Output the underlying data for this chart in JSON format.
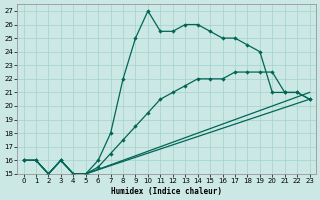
{
  "xlabel": "Humidex (Indice chaleur)",
  "bg_color": "#cce8e4",
  "grid_color": "#aad4d0",
  "line_color": "#006655",
  "xlim": [
    -0.5,
    23.5
  ],
  "ylim": [
    15,
    27.5
  ],
  "xticks": [
    0,
    1,
    2,
    3,
    4,
    5,
    6,
    7,
    8,
    9,
    10,
    11,
    12,
    13,
    14,
    15,
    16,
    17,
    18,
    19,
    20,
    21,
    22,
    23
  ],
  "yticks": [
    15,
    16,
    17,
    18,
    19,
    20,
    21,
    22,
    23,
    24,
    25,
    26,
    27
  ],
  "line1_x": [
    0,
    1,
    2,
    3,
    4,
    5,
    6,
    7,
    8,
    9,
    10,
    11,
    12,
    13,
    14,
    15,
    16,
    17,
    18,
    19,
    20,
    21,
    22,
    23
  ],
  "line1_y": [
    16,
    16,
    15,
    16,
    15,
    15,
    16,
    18,
    22,
    25,
    27,
    25.5,
    25.5,
    26,
    26,
    25.5,
    25,
    25,
    24.5,
    24,
    21,
    21,
    21,
    20.5
  ],
  "line2_x": [
    0,
    1,
    2,
    3,
    4,
    5,
    6,
    7,
    8,
    9,
    10,
    11,
    12,
    13,
    14,
    15,
    16,
    17,
    18,
    19,
    20,
    21,
    22,
    23
  ],
  "line2_y": [
    16,
    16,
    15,
    16,
    15,
    15,
    15.5,
    16.5,
    17.5,
    18.5,
    19.5,
    20.5,
    21,
    21.5,
    22,
    22,
    22,
    22.5,
    22.5,
    22.5,
    22.5,
    21,
    21,
    20.5
  ],
  "line3_x": [
    0,
    1,
    2,
    3,
    4,
    5,
    23
  ],
  "line3_y": [
    16,
    16,
    15,
    16,
    15,
    15,
    20.5
  ],
  "line4_x": [
    0,
    1,
    2,
    3,
    4,
    5,
    23
  ],
  "line4_y": [
    16,
    16,
    15,
    16,
    15,
    15,
    21.0
  ]
}
